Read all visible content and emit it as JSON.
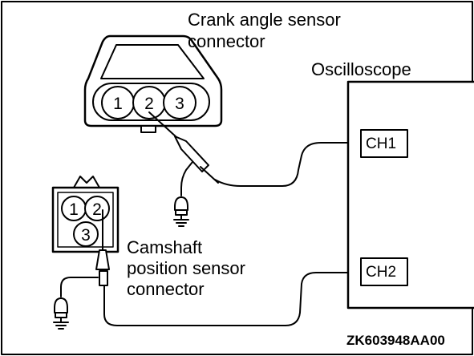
{
  "crank_connector": {
    "title_line1": "Crank angle sensor",
    "title_line2": "connector",
    "pins": [
      "1",
      "2",
      "3"
    ]
  },
  "cam_connector": {
    "title_line1": "Camshaft",
    "title_line2": "position sensor",
    "title_line3": "connector",
    "pins": [
      "1",
      "2",
      "3"
    ]
  },
  "oscilloscope": {
    "title": "Oscilloscope",
    "channels": [
      "CH1",
      "CH2"
    ]
  },
  "figure_code": "ZK603948AA00"
}
